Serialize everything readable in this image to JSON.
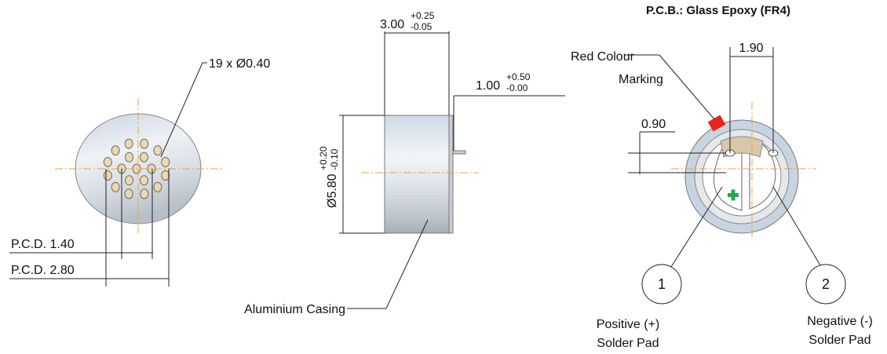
{
  "front_view": {
    "holes_label": "19 x Ø0.40",
    "pcd_inner": "P.C.D. 1.40",
    "pcd_outer": "P.C.D. 2.80"
  },
  "side_view": {
    "length": {
      "nominal": "3.00",
      "upper": "+0.25",
      "lower": "-0.05"
    },
    "pin": {
      "nominal": "1.00",
      "upper": "+0.50",
      "lower": "-0.00"
    },
    "diameter": {
      "nominal": "Ø5.80",
      "upper": "+0.20",
      "lower": "-0.10"
    },
    "casing_label": "Aluminium Casing"
  },
  "rear_view": {
    "title": "P.C.B.: Glass Epoxy (FR4)",
    "marking_label": [
      "Red Colour",
      "Marking"
    ],
    "pad_spacing": "1.90",
    "pad_offset": "0.90",
    "pads": [
      {
        "number": "1",
        "label": [
          "Positive (+)",
          "Solder Pad"
        ]
      },
      {
        "number": "2",
        "label": [
          "Negative (-)",
          "Solder Pad"
        ]
      }
    ]
  }
}
